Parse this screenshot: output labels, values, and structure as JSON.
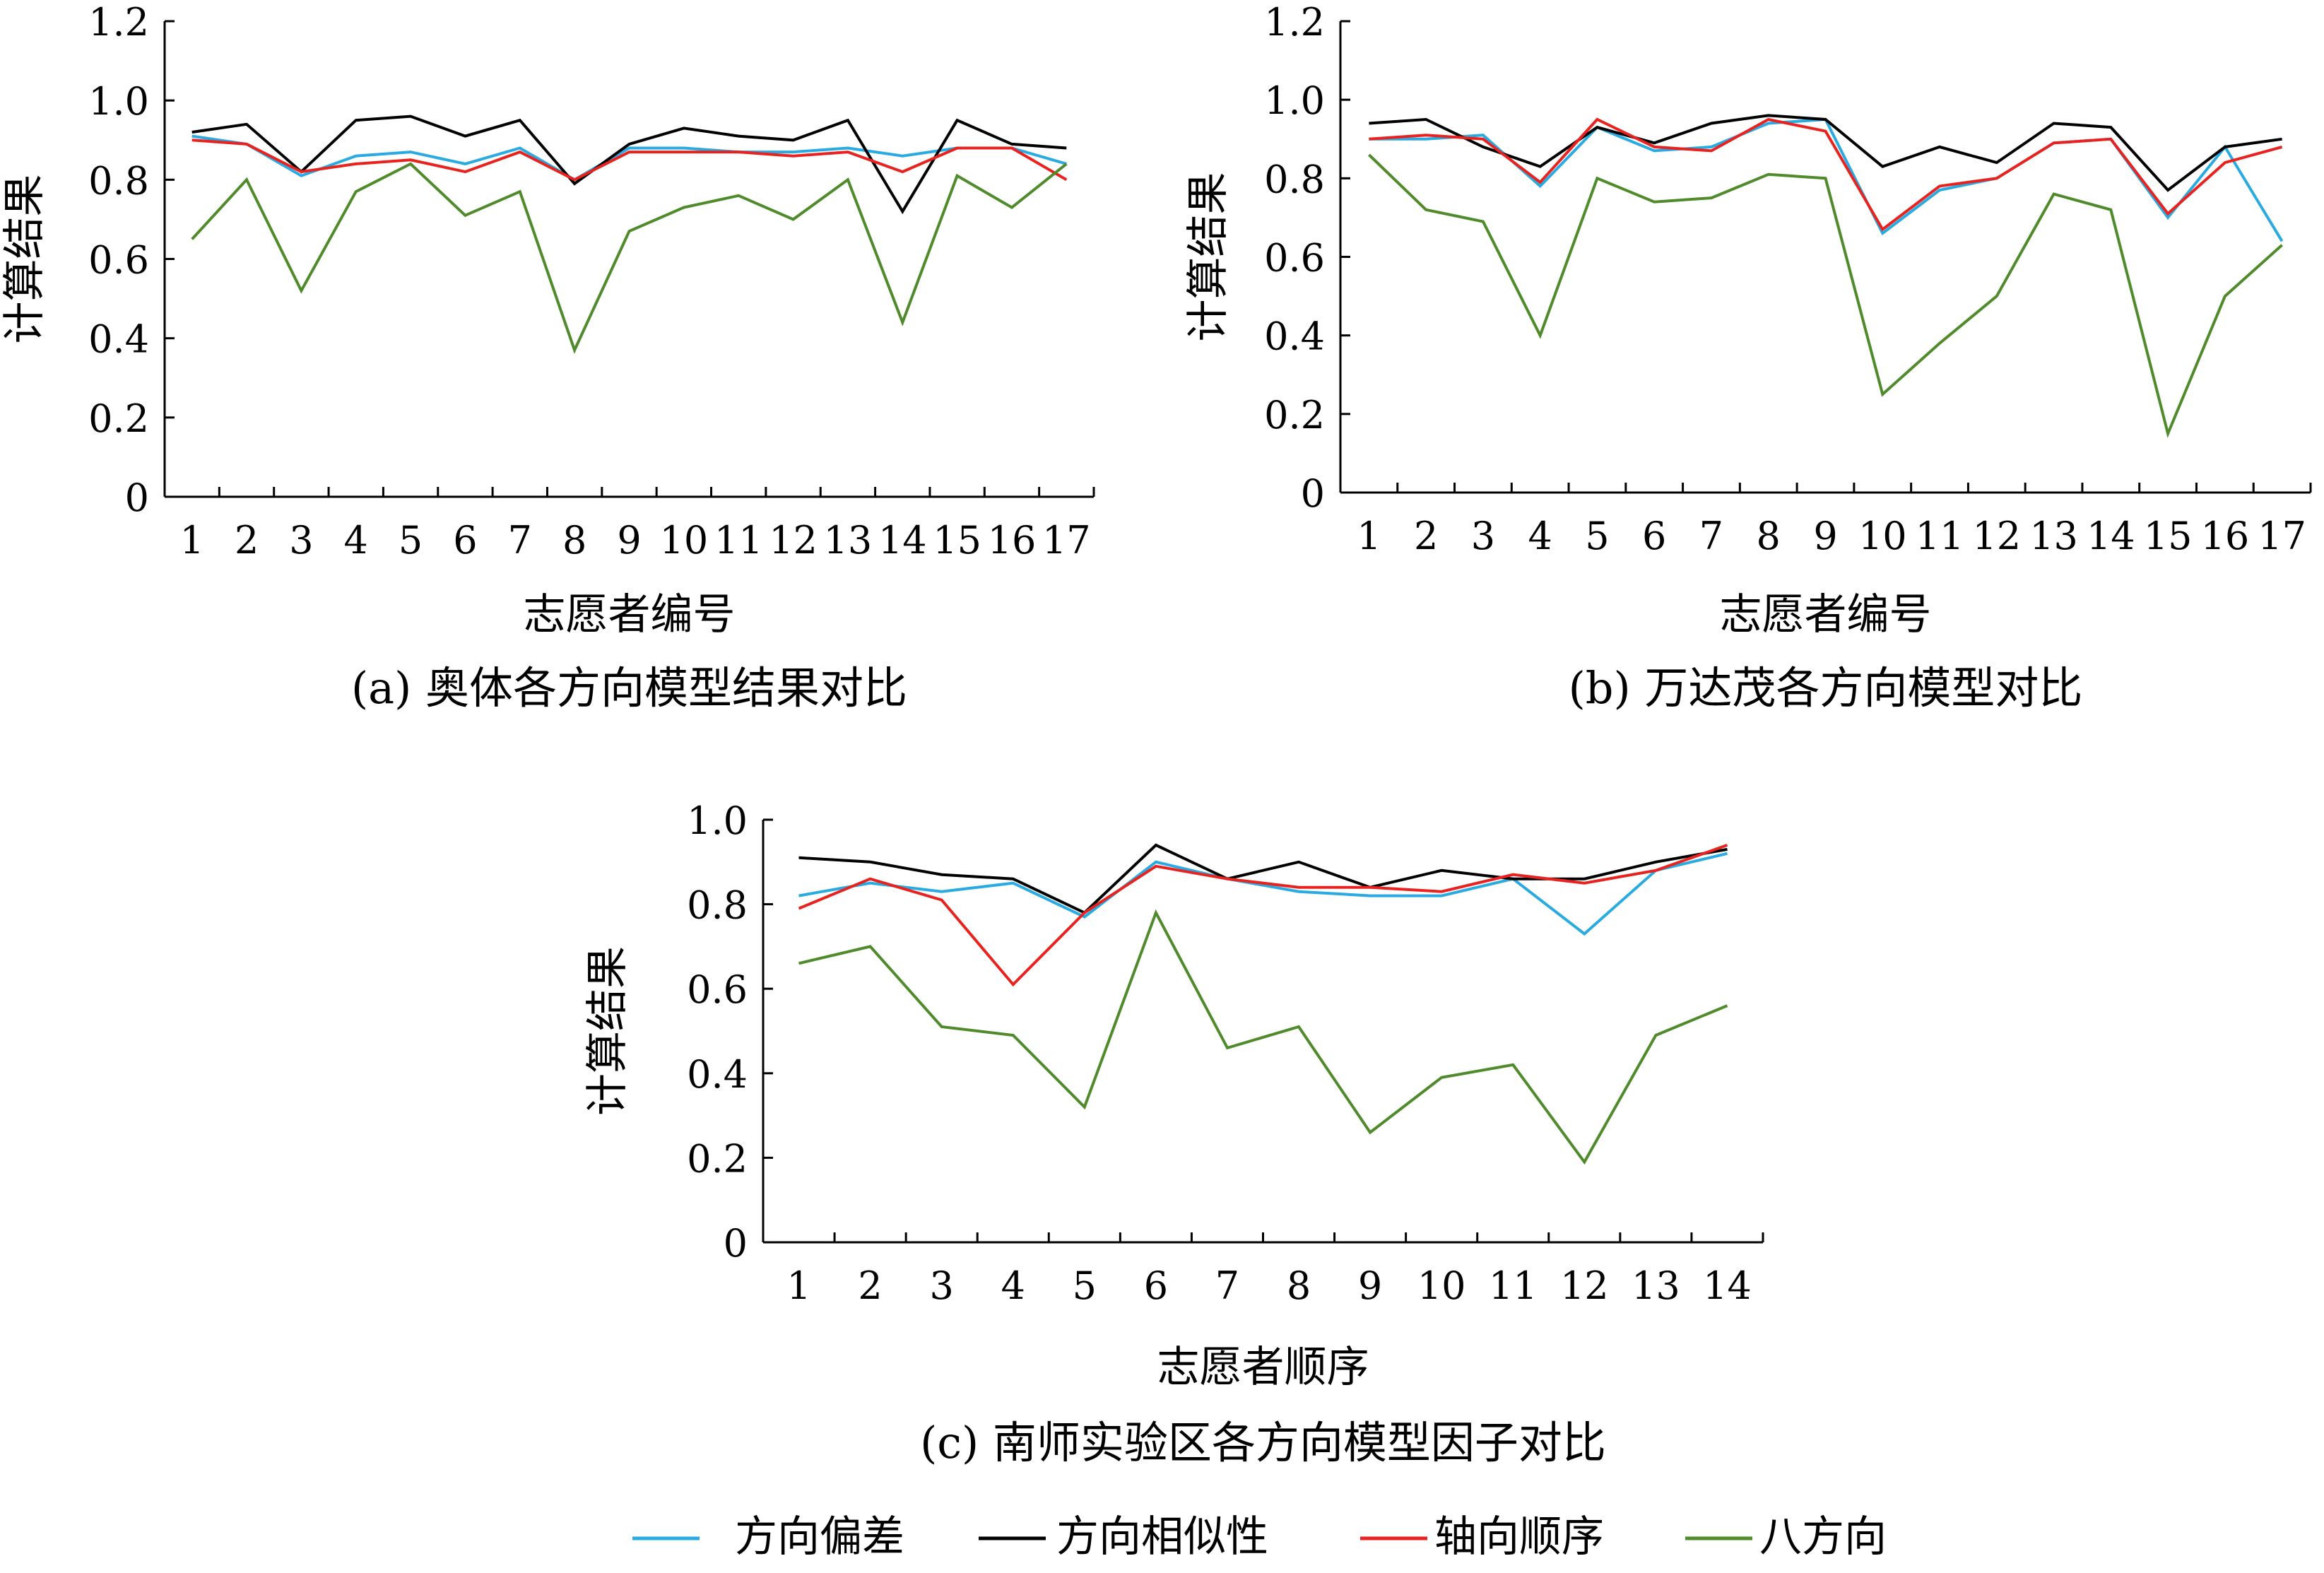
{
  "series_styles": [
    {
      "name": "方向偏差",
      "color": "#29abe2"
    },
    {
      "name": "方向相似性",
      "color": "#000000"
    },
    {
      "name": "轴向顺序",
      "color": "#e8231f"
    },
    {
      "name": "八方向",
      "color": "#4f8a2b"
    }
  ],
  "legend": {
    "items": [
      "方向偏差",
      "方向相似性",
      "轴向顺序",
      "八方向"
    ]
  },
  "chart_data": [
    {
      "type": "line",
      "caption": "(a) 奥体各方向模型结果对比",
      "xlabel": "志愿者编号",
      "ylabel": "计算结果",
      "categories": [
        "1",
        "2",
        "3",
        "4",
        "5",
        "6",
        "7",
        "8",
        "9",
        "10",
        "11",
        "12",
        "13",
        "14",
        "15",
        "16",
        "17"
      ],
      "ylim": [
        0,
        1.2
      ],
      "yticks": [
        "0",
        "0.2",
        "0.4",
        "0.6",
        "0.8",
        "1.0",
        "1.2"
      ],
      "series": [
        {
          "name": "方向偏差",
          "values": [
            0.91,
            0.89,
            0.81,
            0.86,
            0.87,
            0.84,
            0.88,
            0.8,
            0.88,
            0.88,
            0.87,
            0.87,
            0.88,
            0.86,
            0.88,
            0.88,
            0.84
          ]
        },
        {
          "name": "方向相似性",
          "values": [
            0.92,
            0.94,
            0.82,
            0.95,
            0.96,
            0.91,
            0.95,
            0.79,
            0.89,
            0.93,
            0.91,
            0.9,
            0.95,
            0.72,
            0.95,
            0.89,
            0.88
          ]
        },
        {
          "name": "轴向顺序",
          "values": [
            0.9,
            0.89,
            0.82,
            0.84,
            0.85,
            0.82,
            0.87,
            0.8,
            0.87,
            0.87,
            0.87,
            0.86,
            0.87,
            0.82,
            0.88,
            0.88,
            0.8
          ]
        },
        {
          "name": "八方向",
          "values": [
            0.65,
            0.8,
            0.52,
            0.77,
            0.84,
            0.71,
            0.77,
            0.37,
            0.67,
            0.73,
            0.76,
            0.7,
            0.8,
            0.44,
            0.81,
            0.73,
            0.84
          ]
        }
      ]
    },
    {
      "type": "line",
      "caption": "(b) 万达茂各方向模型对比",
      "xlabel": "志愿者编号",
      "ylabel": "计算结果",
      "categories": [
        "1",
        "2",
        "3",
        "4",
        "5",
        "6",
        "7",
        "8",
        "9",
        "10",
        "11",
        "12",
        "13",
        "14",
        "15",
        "16",
        "17"
      ],
      "ylim": [
        0,
        1.2
      ],
      "yticks": [
        "0",
        "0.2",
        "0.4",
        "0.6",
        "0.8",
        "1.0",
        "1.2"
      ],
      "series": [
        {
          "name": "方向偏差",
          "values": [
            0.9,
            0.9,
            0.91,
            0.78,
            0.93,
            0.87,
            0.88,
            0.94,
            0.95,
            0.66,
            0.77,
            0.8,
            0.89,
            0.9,
            0.7,
            0.88,
            0.64
          ]
        },
        {
          "name": "方向相似性",
          "values": [
            0.94,
            0.95,
            0.88,
            0.83,
            0.93,
            0.89,
            0.94,
            0.96,
            0.95,
            0.83,
            0.88,
            0.84,
            0.94,
            0.93,
            0.77,
            0.88,
            0.9
          ]
        },
        {
          "name": "轴向顺序",
          "values": [
            0.9,
            0.91,
            0.9,
            0.79,
            0.95,
            0.88,
            0.87,
            0.95,
            0.92,
            0.67,
            0.78,
            0.8,
            0.89,
            0.9,
            0.71,
            0.84,
            0.88
          ]
        },
        {
          "name": "八方向",
          "values": [
            0.86,
            0.72,
            0.69,
            0.4,
            0.8,
            0.74,
            0.75,
            0.81,
            0.8,
            0.25,
            0.38,
            0.5,
            0.76,
            0.72,
            0.15,
            0.5,
            0.63
          ]
        }
      ]
    },
    {
      "type": "line",
      "caption": "(c) 南师实验区各方向模型因子对比",
      "xlabel": "志愿者顺序",
      "ylabel": "计算结果",
      "categories": [
        "1",
        "2",
        "3",
        "4",
        "5",
        "6",
        "7",
        "8",
        "9",
        "10",
        "11",
        "12",
        "13",
        "14"
      ],
      "ylim": [
        0,
        1.0
      ],
      "yticks": [
        "0",
        "0.2",
        "0.4",
        "0.6",
        "0.8",
        "1.0"
      ],
      "series": [
        {
          "name": "方向偏差",
          "values": [
            0.82,
            0.85,
            0.83,
            0.85,
            0.77,
            0.9,
            0.86,
            0.83,
            0.82,
            0.82,
            0.86,
            0.73,
            0.88,
            0.92
          ]
        },
        {
          "name": "方向相似性",
          "values": [
            0.91,
            0.9,
            0.87,
            0.86,
            0.78,
            0.94,
            0.86,
            0.9,
            0.84,
            0.88,
            0.86,
            0.86,
            0.9,
            0.93
          ]
        },
        {
          "name": "轴向顺序",
          "values": [
            0.79,
            0.86,
            0.81,
            0.61,
            0.78,
            0.89,
            0.86,
            0.84,
            0.84,
            0.83,
            0.87,
            0.85,
            0.88,
            0.94
          ]
        },
        {
          "name": "八方向",
          "values": [
            0.66,
            0.7,
            0.51,
            0.49,
            0.32,
            0.78,
            0.46,
            0.51,
            0.26,
            0.39,
            0.42,
            0.19,
            0.49,
            0.56
          ]
        }
      ]
    }
  ]
}
